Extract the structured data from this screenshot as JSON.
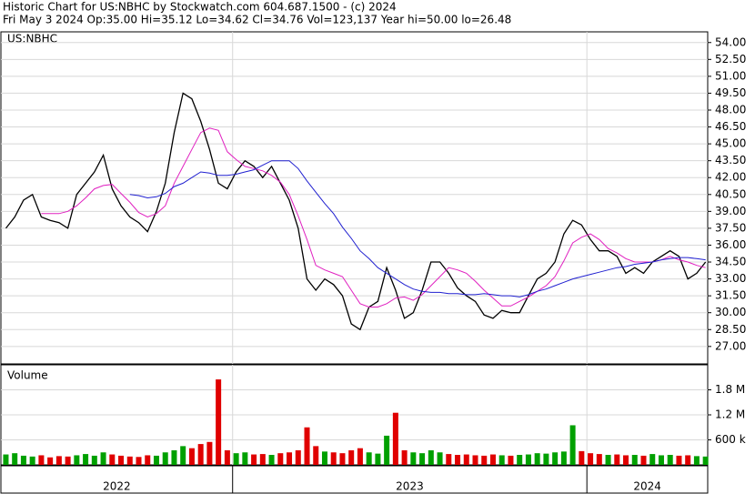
{
  "header": {
    "title": "Historic Chart for US:NBHC by Stockwatch.com 604.687.1500 - (c) 2024",
    "quote": "Fri May  3 2024  Op:35.00  Hi=35.12  Lo=34.62  Cl=34.76  Vol=123,137  Year hi=50.00  lo=26.48"
  },
  "chart_data": [
    {
      "type": "line",
      "title": "US:NBHC",
      "x": [
        2022.36,
        2022.385,
        2022.41,
        2022.435,
        2022.46,
        2022.485,
        2022.51,
        2022.535,
        2022.56,
        2022.585,
        2022.61,
        2022.635,
        2022.66,
        2022.685,
        2022.71,
        2022.735,
        2022.76,
        2022.785,
        2022.81,
        2022.835,
        2022.86,
        2022.885,
        2022.91,
        2022.935,
        2022.96,
        2022.985,
        2023.01,
        2023.035,
        2023.06,
        2023.085,
        2023.11,
        2023.135,
        2023.16,
        2023.185,
        2023.21,
        2023.235,
        2023.26,
        2023.285,
        2023.31,
        2023.335,
        2023.36,
        2023.385,
        2023.41,
        2023.435,
        2023.46,
        2023.485,
        2023.51,
        2023.535,
        2023.56,
        2023.585,
        2023.61,
        2023.635,
        2023.66,
        2023.685,
        2023.71,
        2023.735,
        2023.76,
        2023.785,
        2023.81,
        2023.835,
        2023.86,
        2023.885,
        2023.91,
        2023.935,
        2023.96,
        2023.985,
        2024.01,
        2024.035,
        2024.06,
        2024.085,
        2024.11,
        2024.135,
        2024.16,
        2024.185,
        2024.21,
        2024.235,
        2024.26,
        2024.285,
        2024.31,
        2024.335
      ],
      "xlim": [
        2022.346,
        2024.341
      ],
      "ylim": [
        25.45,
        54.95
      ],
      "yticks": [
        {
          "value": 27,
          "label": "27.00"
        },
        {
          "value": 28.5,
          "label": "28.50"
        },
        {
          "value": 30,
          "label": "30.00"
        },
        {
          "value": 31.5,
          "label": "31.50"
        },
        {
          "value": 33,
          "label": "33.00"
        },
        {
          "value": 34.5,
          "label": "34.50"
        },
        {
          "value": 36,
          "label": "36.00"
        },
        {
          "value": 37.5,
          "label": "37.50"
        },
        {
          "value": 39,
          "label": "39.00"
        },
        {
          "value": 40.5,
          "label": "40.50"
        },
        {
          "value": 42,
          "label": "42.00"
        },
        {
          "value": 43.5,
          "label": "43.50"
        },
        {
          "value": 45,
          "label": "45.00"
        },
        {
          "value": 46.5,
          "label": "46.50"
        },
        {
          "value": 48,
          "label": "48.00"
        },
        {
          "value": 49.5,
          "label": "49.50"
        },
        {
          "value": 51,
          "label": "51.00"
        },
        {
          "value": 52.5,
          "label": "52.50"
        },
        {
          "value": 54,
          "label": "54.00"
        }
      ],
      "xticks": [
        2023,
        2024
      ],
      "grid": true,
      "series": [
        {
          "color": "#000000",
          "values": [
            37.5,
            38.5,
            40,
            40.5,
            38.5,
            38.2,
            38,
            37.5,
            40.5,
            41.5,
            42.5,
            44,
            41,
            39.5,
            38.5,
            38,
            37.2,
            39,
            41.5,
            46,
            49.5,
            49,
            47,
            44.5,
            41.5,
            41,
            42.5,
            43.5,
            43,
            42,
            43,
            41.5,
            40,
            37.5,
            33,
            32,
            33,
            32.5,
            31.5,
            29,
            28.5,
            30.5,
            31,
            34,
            32,
            29.5,
            30,
            32,
            34.5,
            34.5,
            33.5,
            32.2,
            31.5,
            31,
            29.8,
            29.5,
            30.2,
            30,
            30,
            31.5,
            33,
            33.5,
            34.5,
            37,
            38.2,
            37.8,
            36.5,
            35.5,
            35.5,
            35,
            33.5,
            34,
            33.5,
            34.5,
            35,
            35.5,
            35,
            33,
            33.5,
            34.5
          ]
        },
        {
          "color": "#e020c0",
          "values": [
            null,
            null,
            null,
            null,
            38.8,
            38.8,
            38.8,
            39,
            39.5,
            40.2,
            41,
            41.3,
            41.4,
            40.6,
            39.8,
            38.9,
            38.5,
            38.8,
            39.5,
            41.5,
            43,
            44.5,
            46,
            46.4,
            46.2,
            44.3,
            43.6,
            43,
            42.8,
            42.6,
            42.2,
            41.6,
            40.5,
            38.6,
            36.5,
            34.2,
            33.8,
            33.5,
            33.2,
            32,
            30.8,
            30.5,
            30.5,
            30.8,
            31.3,
            31.4,
            31.1,
            31.6,
            32.4,
            33.2,
            34,
            33.8,
            33.5,
            32.8,
            32,
            31.3,
            30.6,
            30.6,
            31,
            31.4,
            31.9,
            32.4,
            33.2,
            34.6,
            36.2,
            36.7,
            37,
            36.5,
            35.7,
            35.3,
            34.8,
            34.5,
            34.5,
            34.5,
            34.7,
            35,
            34.7,
            34.5,
            34.2,
            34
          ]
        },
        {
          "color": "#2020d0",
          "values": [
            null,
            null,
            null,
            null,
            null,
            null,
            null,
            null,
            null,
            null,
            null,
            null,
            null,
            null,
            40.5,
            40.4,
            40.2,
            40.3,
            40.6,
            41.2,
            41.5,
            42,
            42.5,
            42.4,
            42.2,
            42.2,
            42.3,
            42.5,
            42.7,
            43.1,
            43.5,
            43.5,
            43.5,
            42.8,
            41.7,
            40.7,
            39.7,
            38.8,
            37.6,
            36.6,
            35.5,
            34.8,
            34,
            33.5,
            33,
            32.5,
            32.1,
            31.9,
            31.8,
            31.8,
            31.7,
            31.7,
            31.6,
            31.6,
            31.7,
            31.6,
            31.5,
            31.5,
            31.4,
            31.6,
            31.9,
            32.1,
            32.4,
            32.7,
            33,
            33.2,
            33.4,
            33.6,
            33.8,
            34,
            34.1,
            34.3,
            34.4,
            34.5,
            34.7,
            34.8,
            34.9,
            34.9,
            34.8,
            34.7
          ]
        }
      ]
    },
    {
      "type": "bar",
      "title": "Volume",
      "x": [
        2022.36,
        2022.385,
        2022.41,
        2022.435,
        2022.46,
        2022.485,
        2022.51,
        2022.535,
        2022.56,
        2022.585,
        2022.61,
        2022.635,
        2022.66,
        2022.685,
        2022.71,
        2022.735,
        2022.76,
        2022.785,
        2022.81,
        2022.835,
        2022.86,
        2022.885,
        2022.91,
        2022.935,
        2022.96,
        2022.985,
        2023.01,
        2023.035,
        2023.06,
        2023.085,
        2023.11,
        2023.135,
        2023.16,
        2023.185,
        2023.21,
        2023.235,
        2023.26,
        2023.285,
        2023.31,
        2023.335,
        2023.36,
        2023.385,
        2023.41,
        2023.435,
        2023.46,
        2023.485,
        2023.51,
        2023.535,
        2023.56,
        2023.585,
        2023.61,
        2023.635,
        2023.66,
        2023.685,
        2023.71,
        2023.735,
        2023.76,
        2023.785,
        2023.81,
        2023.835,
        2023.86,
        2023.885,
        2023.91,
        2023.935,
        2023.96,
        2023.985,
        2024.01,
        2024.035,
        2024.06,
        2024.085,
        2024.11,
        2024.135,
        2024.16,
        2024.185,
        2024.21,
        2024.235,
        2024.26,
        2024.285,
        2024.31,
        2024.335
      ],
      "values": [
        250000,
        280000,
        220000,
        200000,
        230000,
        180000,
        210000,
        200000,
        230000,
        260000,
        220000,
        300000,
        250000,
        220000,
        200000,
        190000,
        230000,
        220000,
        300000,
        350000,
        450000,
        400000,
        500000,
        550000,
        2050000,
        350000,
        280000,
        300000,
        250000,
        260000,
        240000,
        280000,
        300000,
        350000,
        900000,
        450000,
        320000,
        300000,
        280000,
        350000,
        400000,
        300000,
        270000,
        700000,
        1250000,
        350000,
        300000,
        280000,
        350000,
        300000,
        260000,
        240000,
        250000,
        230000,
        220000,
        250000,
        230000,
        220000,
        240000,
        250000,
        280000,
        270000,
        300000,
        320000,
        950000,
        330000,
        280000,
        260000,
        240000,
        250000,
        230000,
        240000,
        220000,
        260000,
        230000,
        240000,
        220000,
        230000,
        210000,
        200000
      ],
      "up_color": "#00a000",
      "down_color": "#e00000",
      "xlim": [
        2022.346,
        2024.341
      ],
      "ylim": [
        0,
        2400000
      ],
      "yticks": [
        {
          "value": 600000,
          "label": "600 k"
        },
        {
          "value": 1200000,
          "label": "1.2 M"
        },
        {
          "value": 1800000,
          "label": "1.8 M"
        }
      ],
      "xticks": [
        2023,
        2024
      ],
      "year_labels": [
        "2022",
        "2023",
        "2024"
      ],
      "grid": true
    }
  ]
}
